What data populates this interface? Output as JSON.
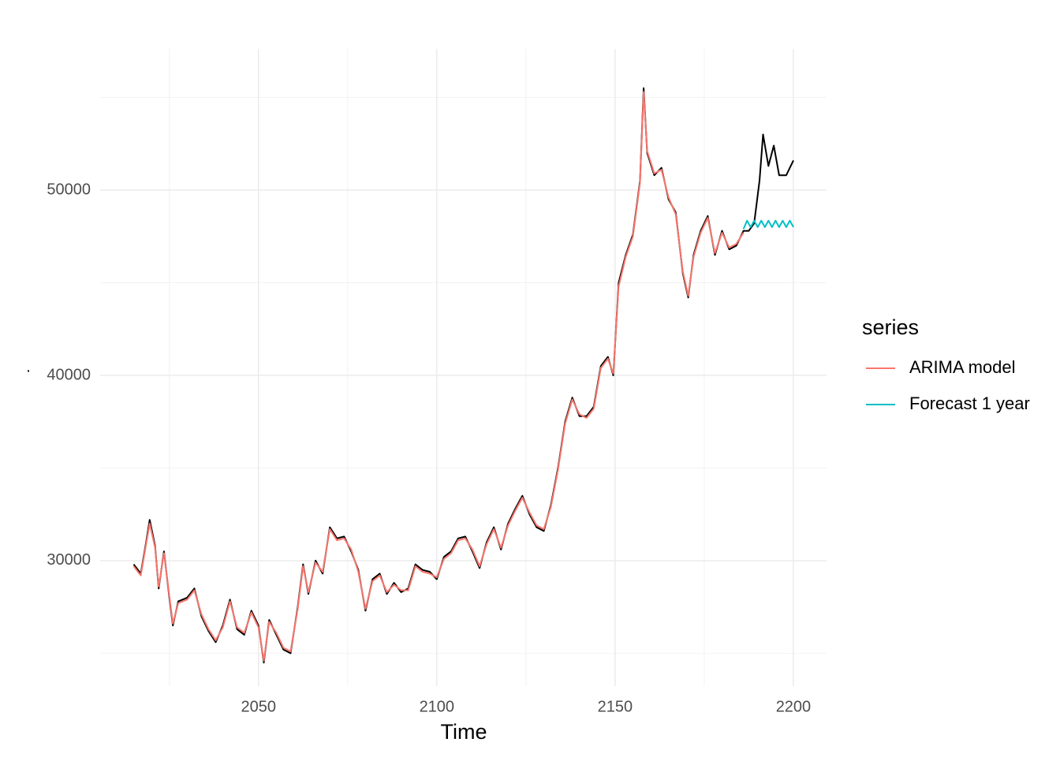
{
  "chart_data": {
    "type": "line",
    "xlabel": "Time",
    "ylabel": ".",
    "legend_title": "series",
    "legend": "right",
    "grid": true,
    "xlim": [
      2005.6,
      2209.3
    ],
    "xticks": [
      2050,
      2100,
      2150,
      2200
    ],
    "xminor": [
      2025,
      2075,
      2125,
      2175
    ],
    "ylim": [
      23230,
      57620
    ],
    "yticks": [
      30000,
      40000,
      50000
    ],
    "yminor": [
      25000,
      35000,
      45000,
      55000
    ],
    "series": [
      {
        "color": "#000000",
        "x": [
          2015,
          2017,
          2018.5,
          2019.5,
          2021,
          2022,
          2023.5,
          2025,
          2026,
          2027.5,
          2030,
          2032,
          2034,
          2036,
          2038,
          2040,
          2042,
          2044,
          2046,
          2048,
          2050,
          2051.5,
          2053,
          2055,
          2057,
          2059,
          2061,
          2062.5,
          2064,
          2066,
          2068,
          2070,
          2072,
          2074,
          2076,
          2078,
          2080,
          2082,
          2084,
          2086,
          2088,
          2090,
          2092,
          2094,
          2096,
          2098,
          2100,
          2102,
          2104,
          2106,
          2108,
          2110,
          2112,
          2114,
          2116,
          2118,
          2120,
          2122,
          2124,
          2126,
          2128,
          2130,
          2132,
          2134,
          2136,
          2138,
          2140,
          2142,
          2144,
          2146,
          2148,
          2149.5,
          2151,
          2153,
          2155,
          2157,
          2158,
          2159,
          2161,
          2163,
          2165,
          2167,
          2169,
          2170.5,
          2172,
          2174,
          2176,
          2178,
          2180,
          2182,
          2184,
          2186,
          2187.5,
          2189,
          2190.5,
          2191.5,
          2193,
          2194.5,
          2196,
          2198,
          2200
        ],
        "values": [
          29800,
          29300,
          31000,
          32200,
          30800,
          28500,
          30500,
          28000,
          26500,
          27800,
          28000,
          28500,
          27000,
          26200,
          25600,
          26500,
          27900,
          26300,
          26000,
          27300,
          26500,
          24500,
          26800,
          26000,
          25200,
          25000,
          27500,
          29800,
          28200,
          30000,
          29300,
          31800,
          31200,
          31300,
          30500,
          29500,
          27300,
          29000,
          29300,
          28200,
          28800,
          28300,
          28500,
          29800,
          29500,
          29400,
          29000,
          30200,
          30500,
          31200,
          31300,
          30500,
          29600,
          31000,
          31800,
          30600,
          32000,
          32800,
          33500,
          32500,
          31800,
          31600,
          33000,
          35000,
          37500,
          38800,
          37800,
          37800,
          38300,
          40500,
          41000,
          40000,
          45000,
          46500,
          47600,
          50500,
          55500,
          52000,
          50800,
          51200,
          49500,
          48800,
          45500,
          44200,
          46500,
          47800,
          48600,
          46500,
          47800,
          46800,
          47000,
          47800,
          47800,
          48200,
          50500,
          53000,
          51300,
          52400,
          50800,
          50800,
          51600
        ]
      },
      {
        "name": "ARIMA model",
        "color": "#F8766D",
        "x": [
          2015,
          2017,
          2018.5,
          2019.5,
          2021,
          2022,
          2023.5,
          2025,
          2026,
          2027.5,
          2030,
          2032,
          2034,
          2036,
          2038,
          2040,
          2042,
          2044,
          2046,
          2048,
          2050,
          2051.5,
          2053,
          2055,
          2057,
          2059,
          2061,
          2062.5,
          2064,
          2066,
          2068,
          2070,
          2072,
          2074,
          2076,
          2078,
          2080,
          2082,
          2084,
          2086,
          2088,
          2090,
          2092,
          2094,
          2096,
          2098,
          2100,
          2102,
          2104,
          2106,
          2108,
          2110,
          2112,
          2114,
          2116,
          2118,
          2120,
          2122,
          2124,
          2126,
          2128,
          2130,
          2132,
          2134,
          2136,
          2138,
          2140,
          2142,
          2144,
          2146,
          2148,
          2149.5,
          2151,
          2153,
          2155,
          2157,
          2158,
          2159,
          2161,
          2163,
          2165,
          2167,
          2169,
          2170.5,
          2172,
          2174,
          2176,
          2178,
          2180,
          2182,
          2184,
          2186
        ],
        "values": [
          29700,
          29200,
          30900,
          32000,
          30700,
          28600,
          30400,
          28100,
          26600,
          27700,
          27900,
          28400,
          27100,
          26300,
          25700,
          26400,
          27800,
          26400,
          26100,
          27200,
          26400,
          24600,
          26700,
          26100,
          25300,
          25100,
          27400,
          29700,
          28300,
          29900,
          29400,
          31700,
          31100,
          31200,
          30600,
          29400,
          27400,
          28900,
          29200,
          28300,
          28700,
          28400,
          28400,
          29700,
          29400,
          29300,
          29100,
          30100,
          30400,
          31100,
          31200,
          30600,
          29700,
          30900,
          31700,
          30700,
          31900,
          32700,
          33400,
          32600,
          31900,
          31700,
          32900,
          34900,
          37400,
          38700,
          37900,
          37700,
          38200,
          40400,
          40900,
          40100,
          44800,
          46400,
          47500,
          50400,
          55300,
          52100,
          50900,
          51100,
          49600,
          48700,
          45600,
          44300,
          46400,
          47700,
          48500,
          46600,
          47700,
          46900,
          47100,
          47700
        ]
      },
      {
        "name": "Forecast 1 year",
        "color": "#00BFC4",
        "x": [
          2186,
          2187,
          2188,
          2189,
          2190,
          2191,
          2192,
          2193,
          2194,
          2195,
          2196,
          2197,
          2198,
          2199,
          2200
        ],
        "values": [
          47900,
          48350,
          48000,
          48350,
          48000,
          48350,
          48000,
          48350,
          48000,
          48350,
          48000,
          48350,
          48000,
          48350,
          48000
        ]
      }
    ]
  }
}
